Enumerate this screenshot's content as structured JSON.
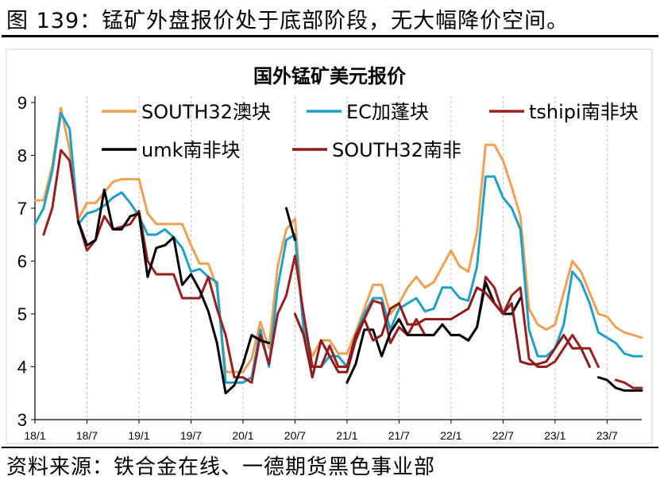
{
  "figure": {
    "caption": "图 139：锰矿外盘报价处于底部阶段，无大幅降价空间。",
    "source": "资料来源：铁合金在线、一德期货黑色事业部"
  },
  "chart_data": {
    "type": "line",
    "title": "国外锰矿美元报价",
    "xlabel": "",
    "ylabel": "",
    "ylim": [
      3,
      9
    ],
    "yticks": [
      3,
      4,
      5,
      6,
      7,
      8,
      9
    ],
    "x_range": [
      0,
      70
    ],
    "x_tick_labels": [
      "18/1",
      "18/7",
      "19/1",
      "19/7",
      "20/1",
      "20/7",
      "21/1",
      "21/7",
      "22/1",
      "22/7",
      "23/1",
      "23/7"
    ],
    "x_tick_positions": [
      0,
      6,
      12,
      18,
      24,
      30,
      36,
      42,
      48,
      54,
      60,
      66
    ],
    "grid": "vertical dashed",
    "series": [
      {
        "name": "SOUTH32澳块",
        "color": "#F0A050",
        "x": [
          0,
          1,
          2,
          3,
          4,
          5,
          6,
          7,
          8,
          9,
          10,
          11,
          12,
          13,
          14,
          15,
          16,
          17,
          18,
          19,
          20,
          21,
          22,
          23,
          24,
          25,
          26,
          27,
          28,
          29,
          30,
          31,
          32,
          33,
          34,
          35,
          36,
          37,
          38,
          39,
          40,
          41,
          42,
          43,
          44,
          45,
          46,
          47,
          48,
          49,
          50,
          51,
          52,
          53,
          54,
          55,
          56,
          57,
          58,
          59,
          60,
          61,
          62,
          63,
          64,
          65,
          66,
          67,
          68,
          69,
          70
        ],
        "y": [
          7.15,
          7.15,
          7.8,
          8.9,
          8.1,
          6.8,
          7.1,
          7.1,
          7.3,
          7.5,
          7.55,
          7.55,
          7.55,
          6.9,
          6.7,
          6.7,
          6.7,
          6.7,
          6.3,
          5.95,
          5.95,
          5.5,
          3.9,
          3.9,
          3.9,
          4.15,
          4.85,
          4.35,
          5.9,
          6.6,
          6.8,
          4.7,
          4.2,
          4.5,
          4.5,
          4.25,
          4.25,
          4.65,
          5.1,
          5.55,
          5.55,
          5.0,
          5.2,
          5.5,
          5.7,
          5.5,
          5.6,
          5.9,
          6.2,
          5.9,
          5.8,
          6.55,
          8.2,
          8.2,
          7.9,
          7.4,
          6.85,
          5.1,
          4.8,
          4.7,
          4.8,
          5.4,
          6.0,
          5.8,
          5.4,
          5.0,
          4.95,
          4.75,
          4.65,
          4.6,
          4.55
        ]
      },
      {
        "name": "EC加蓬块",
        "color": "#1EA0C8",
        "x": [
          0,
          1,
          2,
          3,
          4,
          5,
          6,
          7,
          8,
          9,
          10,
          11,
          12,
          13,
          14,
          15,
          16,
          17,
          18,
          19,
          20,
          21,
          22,
          23,
          24,
          25,
          26,
          27,
          28,
          29,
          30,
          31,
          32,
          33,
          34,
          35,
          36,
          37,
          38,
          39,
          40,
          41,
          42,
          43,
          44,
          45,
          46,
          47,
          48,
          49,
          50,
          51,
          52,
          53,
          54,
          55,
          56,
          57,
          58,
          59,
          60,
          61,
          62,
          63,
          64,
          65,
          66,
          67,
          68,
          69,
          70
        ],
        "y": [
          6.7,
          7.0,
          7.7,
          8.8,
          8.5,
          6.7,
          6.9,
          6.95,
          7.05,
          7.2,
          7.3,
          7.1,
          6.85,
          6.5,
          6.5,
          6.6,
          6.45,
          6.25,
          5.8,
          5.85,
          5.7,
          5.6,
          3.7,
          3.7,
          3.7,
          3.8,
          4.7,
          4.0,
          5.5,
          6.4,
          6.5,
          4.7,
          4.0,
          4.0,
          4.2,
          4.2,
          4.0,
          4.6,
          5.0,
          5.3,
          5.3,
          4.7,
          5.1,
          5.2,
          5.3,
          5.05,
          5.1,
          5.5,
          5.5,
          5.3,
          5.25,
          5.9,
          7.6,
          7.6,
          7.2,
          7.0,
          6.6,
          4.7,
          4.2,
          4.2,
          4.35,
          4.8,
          5.8,
          5.6,
          5.2,
          4.65,
          4.55,
          4.45,
          4.25,
          4.2,
          4.2
        ]
      },
      {
        "name": "tshipi南非块",
        "color": "#9A1E1E",
        "x": [
          1,
          2,
          3,
          4,
          5,
          6,
          7,
          8,
          9,
          10,
          11,
          12,
          13,
          14,
          15,
          16,
          17,
          18,
          19,
          20,
          21,
          22,
          23,
          24,
          25,
          26,
          27,
          28,
          29,
          30,
          31,
          32,
          33,
          34,
          35,
          36,
          37,
          38,
          39,
          40,
          41,
          42,
          43,
          44,
          45,
          46,
          47,
          48,
          49,
          50,
          51,
          52,
          53,
          54,
          55,
          56,
          57,
          58,
          59,
          60,
          61,
          62,
          63,
          64,
          65,
          66,
          null,
          67,
          68,
          69,
          70
        ],
        "y": [
          6.5,
          7.0,
          8.1,
          7.9,
          6.75,
          6.2,
          6.4,
          6.85,
          6.6,
          6.65,
          6.7,
          6.95,
          6.0,
          5.75,
          5.75,
          5.75,
          5.3,
          5.3,
          5.3,
          5.7,
          5.1,
          4.6,
          3.8,
          3.8,
          3.7,
          4.6,
          4.05,
          5.0,
          5.35,
          6.1,
          5.0,
          4.0,
          4.0,
          4.4,
          4.0,
          4.0,
          4.6,
          4.9,
          5.25,
          5.2,
          4.45,
          4.75,
          4.6,
          4.9,
          4.6,
          4.6,
          4.8,
          4.6,
          4.6,
          4.5,
          4.75,
          5.7,
          5.5,
          5.0,
          5.35,
          5.5,
          4.15,
          4.0,
          4.0,
          4.1,
          4.35,
          4.6,
          4.35,
          4.35,
          4.0,
          null,
          null,
          3.75,
          3.7,
          3.6,
          3.6
        ]
      },
      {
        "name": "umk南非块",
        "color": "#000000",
        "x": [
          5,
          6,
          7,
          8,
          9,
          10,
          11,
          12,
          13,
          14,
          15,
          16,
          17,
          18,
          19,
          20,
          21,
          22,
          23,
          24,
          25,
          26,
          27,
          null,
          29,
          30,
          null,
          36,
          37,
          38,
          39,
          40,
          41,
          42,
          43,
          44,
          45,
          46,
          47,
          48,
          49,
          50,
          51,
          52,
          53,
          54,
          55,
          56,
          null,
          65,
          66,
          67,
          68,
          69,
          70
        ],
        "y": [
          6.75,
          6.3,
          6.4,
          7.35,
          6.6,
          6.6,
          6.85,
          6.9,
          5.7,
          6.25,
          6.3,
          6.45,
          5.55,
          5.75,
          5.45,
          5.05,
          4.45,
          3.5,
          3.65,
          4.05,
          4.6,
          4.5,
          4.45,
          null,
          7.0,
          6.4,
          null,
          3.7,
          4.05,
          4.7,
          4.7,
          4.2,
          4.65,
          4.9,
          4.6,
          4.6,
          4.6,
          4.6,
          4.8,
          4.6,
          4.6,
          4.5,
          4.75,
          5.6,
          5.2,
          5.0,
          5.0,
          5.3,
          null,
          3.8,
          3.75,
          3.6,
          3.55,
          3.55,
          3.55
        ]
      },
      {
        "name": "SOUTH32南非",
        "color": "#8B1A1A",
        "x": [
          0,
          1,
          2,
          3,
          4,
          5,
          6,
          7,
          8,
          9,
          10,
          11,
          12,
          13,
          14,
          15,
          16,
          17,
          18,
          19,
          20,
          21,
          22,
          23,
          24,
          25,
          26,
          27,
          28,
          29,
          30,
          31,
          32,
          33,
          34,
          35,
          36,
          37,
          38,
          39,
          40,
          41,
          42,
          43,
          44,
          45,
          46,
          47,
          48,
          49,
          50,
          51,
          52,
          53,
          54,
          55,
          56,
          57,
          58,
          59,
          60,
          61,
          62,
          63,
          64,
          65,
          66,
          67,
          68,
          69,
          70
        ],
        "y": [
          null,
          null,
          null,
          null,
          null,
          null,
          null,
          null,
          null,
          null,
          null,
          null,
          null,
          null,
          null,
          null,
          null,
          null,
          null,
          null,
          null,
          null,
          null,
          null,
          null,
          null,
          null,
          null,
          null,
          null,
          5.0,
          4.6,
          3.8,
          4.5,
          4.2,
          3.9,
          3.9,
          4.5,
          4.9,
          4.5,
          4.6,
          5.1,
          5.2,
          4.8,
          4.8,
          4.9,
          4.9,
          4.9,
          4.9,
          5.0,
          5.1,
          5.5,
          5.4,
          5.2,
          5.0,
          5.2,
          4.1,
          4.05,
          4.05,
          4.1,
          4.35,
          4.6,
          4.35,
          4.35,
          4.0,
          null,
          null,
          null,
          null,
          null,
          null
        ]
      }
    ],
    "legend": [
      {
        "label": "SOUTH32澳块",
        "color": "#F0A050"
      },
      {
        "label": "EC加蓬块",
        "color": "#1EA0C8"
      },
      {
        "label": "tshipi南非块",
        "color": "#9A1E1E"
      },
      {
        "label": "umk南非块",
        "color": "#000000"
      },
      {
        "label": "SOUTH32南非",
        "color": "#8B1A1A"
      }
    ]
  }
}
